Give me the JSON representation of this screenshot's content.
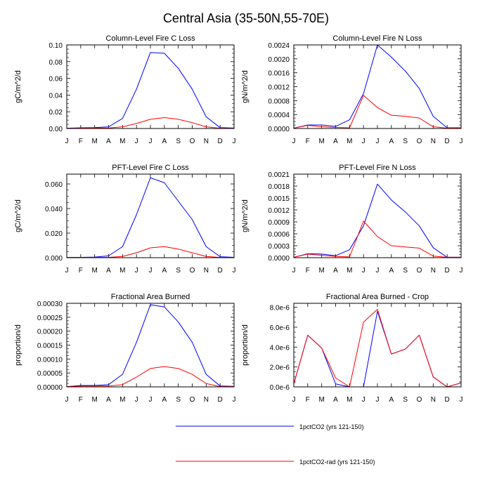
{
  "title": "Central Asia (35-50N,55-70E)",
  "months": [
    "J",
    "F",
    "M",
    "A",
    "M",
    "J",
    "J",
    "A",
    "S",
    "O",
    "N",
    "D",
    "J"
  ],
  "legend": [
    {
      "label": "1pctCO2 (yrs 121-150)",
      "color": "#0000ff"
    },
    {
      "label": "1pctCO2-rad (yrs 121-150)",
      "color": "#ff0000"
    }
  ],
  "colors": {
    "blue": "#0000ff",
    "red": "#ff0000"
  },
  "chart_data": [
    {
      "type": "line",
      "title": "Column-Level Fire C Loss",
      "ylabel": "gC/m^2/d",
      "ylim": [
        0,
        0.1
      ],
      "yticks": [
        0,
        0.02,
        0.04,
        0.06,
        0.08,
        0.1
      ],
      "ytick_labels": [
        "0.00",
        "0.02",
        "0.04",
        "0.06",
        "0.08",
        "0.10"
      ],
      "series": [
        {
          "name": "1pctCO2 (yrs 121-150)",
          "values": [
            0.0003,
            0.0008,
            0.001,
            0.002,
            0.012,
            0.047,
            0.091,
            0.09,
            0.072,
            0.047,
            0.014,
            0.001,
            0.0005
          ]
        },
        {
          "name": "1pctCO2-rad (yrs 121-150)",
          "values": [
            0.0001,
            0.0003,
            0.0004,
            0.0006,
            0.002,
            0.006,
            0.011,
            0.013,
            0.011,
            0.007,
            0.002,
            0.0003,
            0.0001
          ]
        }
      ]
    },
    {
      "type": "line",
      "title": "Column-Level Fire N Loss",
      "ylabel": "gN/m^2/d",
      "ylim": [
        0,
        0.0024
      ],
      "yticks": [
        0,
        0.0004,
        0.0008,
        0.0012,
        0.0016,
        0.002,
        0.0024
      ],
      "ytick_labels": [
        "0.0000",
        "0.0004",
        "0.0008",
        "0.0012",
        "0.0016",
        "0.0020",
        "0.0024"
      ],
      "series": [
        {
          "name": "1pctCO2 (yrs 121-150)",
          "values": [
            1e-05,
            0.0001,
            0.0001,
            6e-05,
            0.00025,
            0.001,
            0.0024,
            0.00205,
            0.00165,
            0.00115,
            0.00035,
            2e-05,
            2e-05
          ]
        },
        {
          "name": "1pctCO2-rad (yrs 121-150)",
          "values": [
            1e-05,
            9e-05,
            5e-05,
            3e-05,
            2e-05,
            0.00095,
            0.0006,
            0.00038,
            0.00035,
            0.0003,
            5e-05,
            1e-05,
            1e-05
          ]
        }
      ]
    },
    {
      "type": "line",
      "title": "PFT-Level Fire C Loss",
      "ylabel": "gC/m^2/d",
      "ylim": [
        0,
        0.068
      ],
      "yticks": [
        0,
        0.02,
        0.04,
        0.06
      ],
      "ytick_labels": [
        "0.000",
        "0.020",
        "0.040",
        "0.060"
      ],
      "series": [
        {
          "name": "1pctCO2 (yrs 121-150)",
          "values": [
            0.0002,
            0.0003,
            0.0005,
            0.0015,
            0.009,
            0.035,
            0.065,
            0.061,
            0.046,
            0.031,
            0.009,
            0.0008,
            0.0003
          ]
        },
        {
          "name": "1pctCO2-rad (yrs 121-150)",
          "values": [
            0.0001,
            0.0002,
            0.0002,
            0.0003,
            0.001,
            0.004,
            0.008,
            0.009,
            0.007,
            0.004,
            0.001,
            0.0002,
            0.0001
          ]
        }
      ]
    },
    {
      "type": "line",
      "title": "PFT-Level Fire N Loss",
      "ylabel": "gN/m^2/d",
      "ylim": [
        0,
        0.0021
      ],
      "yticks": [
        0,
        0.0003,
        0.0006,
        0.0009,
        0.0012,
        0.0015,
        0.0018,
        0.0021
      ],
      "ytick_labels": [
        "0.0000",
        "0.0003",
        "0.0006",
        "0.0009",
        "0.0012",
        "0.0015",
        "0.0018",
        "0.0021"
      ],
      "series": [
        {
          "name": "1pctCO2 (yrs 121-150)",
          "values": [
            1e-05,
            0.0001,
            9e-05,
            5e-05,
            0.0002,
            0.0008,
            0.00185,
            0.00145,
            0.00115,
            0.0008,
            0.00025,
            1e-05,
            1e-05
          ]
        },
        {
          "name": "1pctCO2-rad (yrs 121-150)",
          "values": [
            1e-05,
            9e-05,
            6e-05,
            3e-05,
            2e-05,
            0.00092,
            0.00053,
            0.0003,
            0.00027,
            0.00024,
            4e-05,
            1e-05,
            1e-05
          ]
        }
      ]
    },
    {
      "type": "line",
      "title": "Fractional Area Burned",
      "ylabel": "proportion/d",
      "ylim": [
        0,
        0.0003
      ],
      "yticks": [
        0,
        5e-05,
        0.0001,
        0.00015,
        0.0002,
        0.00025,
        0.0003
      ],
      "ytick_labels": [
        "0.00000",
        "0.00005",
        "0.00010",
        "0.00015",
        "0.00020",
        "0.00025",
        "0.00030"
      ],
      "series": [
        {
          "name": "1pctCO2 (yrs 121-150)",
          "values": [
            1e-06,
            5e-06,
            5e-06,
            8e-06,
            4.5e-05,
            0.00016,
            0.000295,
            0.000287,
            0.000233,
            0.00016,
            4.5e-05,
            3e-06,
            2e-06
          ]
        },
        {
          "name": "1pctCO2-rad (yrs 121-150)",
          "values": [
            1e-06,
            3e-06,
            3e-06,
            3e-06,
            8e-06,
            3.5e-05,
            6.6e-05,
            7.3e-05,
            6.6e-05,
            4.5e-05,
            1.2e-05,
            1e-06,
            1e-06
          ]
        }
      ]
    },
    {
      "type": "line",
      "title": "Fractional Area Burned - Crop",
      "ylabel": "proportion/d",
      "ylim": [
        0,
        8.4e-06
      ],
      "yticks": [
        0,
        2e-06,
        4e-06,
        6e-06,
        8e-06
      ],
      "ytick_labels": [
        "0.0e-6",
        "2.0e-6",
        "4.0e-6",
        "6.0e-6",
        "8.0e-6"
      ],
      "series": [
        {
          "name": "1pctCO2 (yrs 121-150)",
          "values": [
            3e-07,
            5.2e-06,
            3.9e-06,
            3e-07,
            0,
            0,
            7.6e-06,
            3.3e-06,
            3.8e-06,
            5.2e-06,
            1e-06,
            0,
            4e-07
          ]
        },
        {
          "name": "1pctCO2-rad (yrs 121-150)",
          "values": [
            3e-07,
            5.2e-06,
            3.9e-06,
            9e-07,
            0,
            6.5e-06,
            7.8e-06,
            3.3e-06,
            3.8e-06,
            5.2e-06,
            1e-06,
            0,
            4e-07
          ]
        }
      ]
    }
  ]
}
